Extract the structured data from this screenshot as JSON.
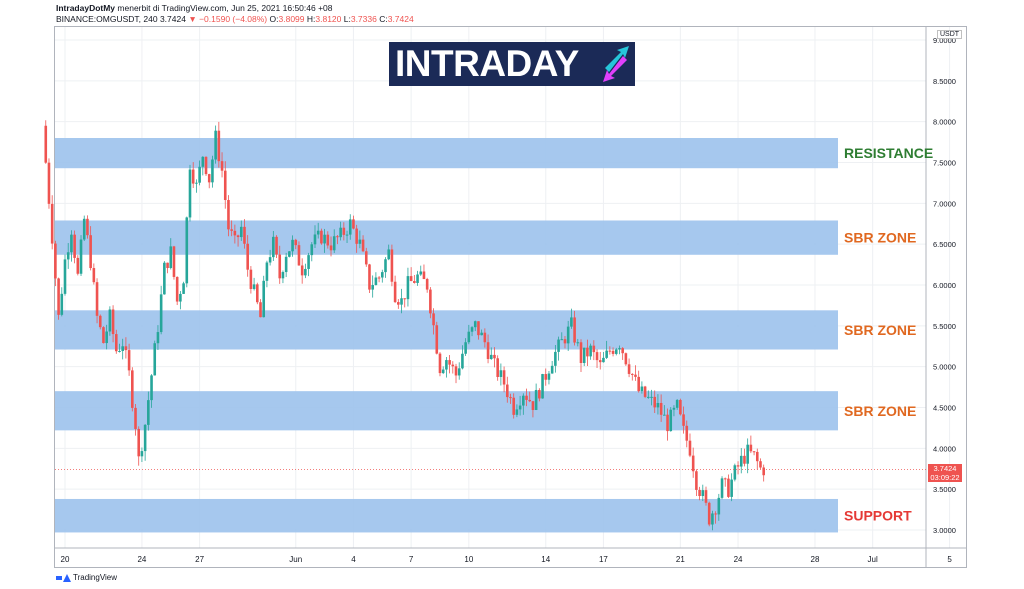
{
  "header": {
    "publisher": "IntradayDotMy",
    "publisher_suffix": " menerbit di TradingView.com, Jun 25, 2021 16:50:46 +08",
    "symbol": "BINANCE:OMGUSDT, 240",
    "last": "3.7424",
    "change": "▼ −0.1590 (−4.08%)",
    "o_label": "O:",
    "o": "3.8099",
    "h_label": "H:",
    "h": "3.8120",
    "l_label": "L:",
    "l": "3.7336",
    "c_label": "C:",
    "c": "3.7424"
  },
  "logo": {
    "text": "INTRADAY"
  },
  "footer": {
    "brand": "TradingView"
  },
  "price_axis": {
    "currency": "USDT",
    "current_price": "3.7424",
    "countdown": "03:09:22"
  },
  "colors": {
    "zone_fill": "#9cc2ec",
    "resistance": "#2e7d32",
    "sbr": "#e06820",
    "support": "#e53935",
    "up": "#26a69a",
    "down": "#ef5350"
  },
  "chart_data": {
    "type": "candlestick",
    "title": "",
    "xlabel": "",
    "ylabel": "",
    "ylim": [
      2.85,
      9.05
    ],
    "y_ticks": [
      "9.0000",
      "8.5000",
      "8.0000",
      "7.5000",
      "7.0000",
      "6.5000",
      "6.0000",
      "5.5000",
      "5.0000",
      "4.5000",
      "4.0000",
      "3.5000",
      "3.0000"
    ],
    "x_ticks": [
      "20",
      "24",
      "27",
      "Jun",
      "4",
      "7",
      "10",
      "14",
      "17",
      "21",
      "24",
      "28",
      "Jul",
      "5"
    ],
    "x_tick_dates": [
      "2021-05-20",
      "2021-05-24",
      "2021-05-27",
      "2021-06-01",
      "2021-06-04",
      "2021-06-07",
      "2021-06-10",
      "2021-06-14",
      "2021-06-17",
      "2021-06-21",
      "2021-06-24",
      "2021-06-28",
      "2021-07-01",
      "2021-07-05"
    ],
    "zones": [
      {
        "name": "RESISTANCE",
        "low": 7.43,
        "high": 7.8,
        "color_key": "resistance"
      },
      {
        "name": "SBR ZONE",
        "low": 6.37,
        "high": 6.79,
        "color_key": "sbr"
      },
      {
        "name": "SBR ZONE",
        "low": 5.21,
        "high": 5.69,
        "color_key": "sbr"
      },
      {
        "name": "SBR ZONE",
        "low": 4.22,
        "high": 4.7,
        "color_key": "sbr"
      },
      {
        "name": "SUPPORT",
        "low": 2.97,
        "high": 3.38,
        "color_key": "support"
      }
    ],
    "close_path": [
      [
        "2021-05-19 00:00",
        7.95
      ],
      [
        "2021-05-19 12:00",
        6.6
      ],
      [
        "2021-05-19 20:00",
        5.6
      ],
      [
        "2021-05-20 04:00",
        6.3
      ],
      [
        "2021-05-20 12:00",
        6.7
      ],
      [
        "2021-05-20 20:00",
        6.1
      ],
      [
        "2021-05-21 04:00",
        6.8
      ],
      [
        "2021-05-21 12:00",
        6.3
      ],
      [
        "2021-05-21 20:00",
        5.6
      ],
      [
        "2021-05-22 04:00",
        5.3
      ],
      [
        "2021-05-22 12:00",
        5.6
      ],
      [
        "2021-05-22 20:00",
        5.2
      ],
      [
        "2021-05-23 04:00",
        5.3
      ],
      [
        "2021-05-23 12:00",
        4.9
      ],
      [
        "2021-05-23 20:00",
        4.3
      ],
      [
        "2021-05-24 00:00",
        3.85
      ],
      [
        "2021-05-24 08:00",
        4.3
      ],
      [
        "2021-05-24 16:00",
        4.9
      ],
      [
        "2021-05-25 00:00",
        5.5
      ],
      [
        "2021-05-25 08:00",
        6.2
      ],
      [
        "2021-05-25 16:00",
        6.4
      ],
      [
        "2021-05-26 00:00",
        5.8
      ],
      [
        "2021-05-26 08:00",
        6.1
      ],
      [
        "2021-05-26 16:00",
        7.5
      ],
      [
        "2021-05-27 00:00",
        7.2
      ],
      [
        "2021-05-27 08:00",
        7.6
      ],
      [
        "2021-05-27 16:00",
        7.3
      ],
      [
        "2021-05-28 00:00",
        7.8
      ],
      [
        "2021-05-28 08:00",
        7.4
      ],
      [
        "2021-05-28 16:00",
        6.7
      ],
      [
        "2021-05-29 00:00",
        6.5
      ],
      [
        "2021-05-29 08:00",
        6.7
      ],
      [
        "2021-05-29 16:00",
        6.2
      ],
      [
        "2021-05-30 00:00",
        5.9
      ],
      [
        "2021-05-30 08:00",
        5.6
      ],
      [
        "2021-05-30 16:00",
        6.3
      ],
      [
        "2021-05-31 00:00",
        6.5
      ],
      [
        "2021-05-31 08:00",
        6.1
      ],
      [
        "2021-05-31 16:00",
        6.4
      ],
      [
        "2021-06-01 00:00",
        6.5
      ],
      [
        "2021-06-01 12:00",
        6.2
      ],
      [
        "2021-06-02 00:00",
        6.5
      ],
      [
        "2021-06-02 12:00",
        6.6
      ],
      [
        "2021-06-03 00:00",
        6.5
      ],
      [
        "2021-06-03 12:00",
        6.6
      ],
      [
        "2021-06-04 00:00",
        6.75
      ],
      [
        "2021-06-04 12:00",
        6.5
      ],
      [
        "2021-06-05 00:00",
        6.0
      ],
      [
        "2021-06-05 12:00",
        6.1
      ],
      [
        "2021-06-06 00:00",
        6.4
      ],
      [
        "2021-06-06 08:00",
        5.9
      ],
      [
        "2021-06-06 16:00",
        5.8
      ],
      [
        "2021-06-07 00:00",
        6.0
      ],
      [
        "2021-06-07 12:00",
        6.1
      ],
      [
        "2021-06-08 00:00",
        6.0
      ],
      [
        "2021-06-08 08:00",
        5.5
      ],
      [
        "2021-06-08 16:00",
        5.0
      ],
      [
        "2021-06-09 00:00",
        5.1
      ],
      [
        "2021-06-09 12:00",
        4.9
      ],
      [
        "2021-06-10 00:00",
        5.3
      ],
      [
        "2021-06-10 12:00",
        5.5
      ],
      [
        "2021-06-11 00:00",
        5.3
      ],
      [
        "2021-06-11 12:00",
        5.0
      ],
      [
        "2021-06-12 00:00",
        4.8
      ],
      [
        "2021-06-12 12:00",
        4.5
      ],
      [
        "2021-06-13 00:00",
        4.7
      ],
      [
        "2021-06-13 12:00",
        4.55
      ],
      [
        "2021-06-14 00:00",
        4.8
      ],
      [
        "2021-06-14 12:00",
        5.1
      ],
      [
        "2021-06-15 00:00",
        5.3
      ],
      [
        "2021-06-15 12:00",
        5.5
      ],
      [
        "2021-06-16 00:00",
        5.1
      ],
      [
        "2021-06-16 12:00",
        5.2
      ],
      [
        "2021-06-17 00:00",
        5.0
      ],
      [
        "2021-06-17 12:00",
        5.2
      ],
      [
        "2021-06-18 00:00",
        5.3
      ],
      [
        "2021-06-18 12:00",
        5.0
      ],
      [
        "2021-06-19 00:00",
        4.7
      ],
      [
        "2021-06-19 12:00",
        4.6
      ],
      [
        "2021-06-20 00:00",
        4.5
      ],
      [
        "2021-06-20 12:00",
        4.3
      ],
      [
        "2021-06-21 00:00",
        4.5
      ],
      [
        "2021-06-21 08:00",
        4.2
      ],
      [
        "2021-06-21 16:00",
        4.0
      ],
      [
        "2021-06-22 00:00",
        3.6
      ],
      [
        "2021-06-22 08:00",
        3.4
      ],
      [
        "2021-06-22 16:00",
        3.15
      ],
      [
        "2021-06-23 00:00",
        3.3
      ],
      [
        "2021-06-23 08:00",
        3.55
      ],
      [
        "2021-06-23 16:00",
        3.5
      ],
      [
        "2021-06-24 00:00",
        3.7
      ],
      [
        "2021-06-24 08:00",
        3.85
      ],
      [
        "2021-06-24 16:00",
        3.95
      ],
      [
        "2021-06-25 00:00",
        3.9
      ],
      [
        "2021-06-25 08:00",
        3.75
      ]
    ]
  }
}
